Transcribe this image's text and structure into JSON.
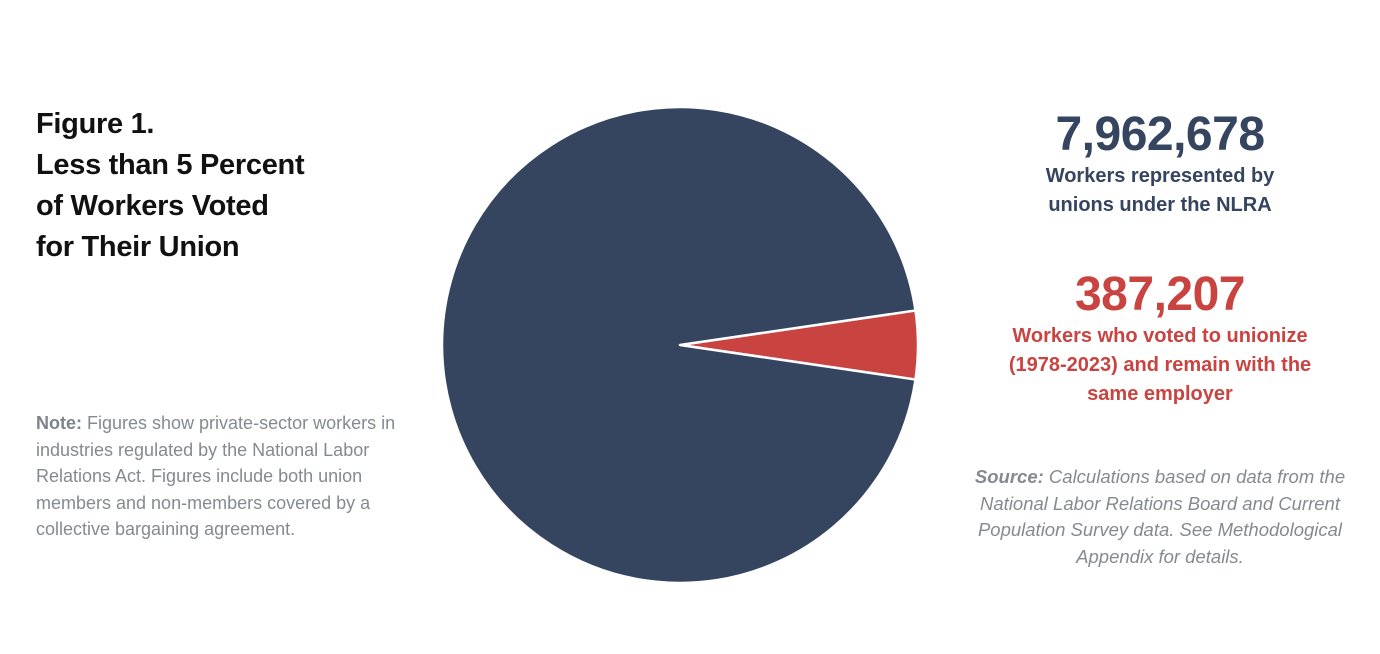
{
  "title_lines": [
    "Figure 1.",
    "Less than 5 Percent",
    "of Workers Voted",
    "for Their Union"
  ],
  "note": {
    "label": "Note:",
    "text": " Figures show private-sector workers in industries regulated by the National Labor Relations Act. Figures include both union members and non-members covered by a collective bargaining agreement."
  },
  "stats": {
    "total": {
      "number": "7,962,678",
      "label_lines": [
        "Workers represented by",
        "unions under the NLRA"
      ]
    },
    "voted": {
      "number": "387,207",
      "label_lines": [
        "Workers who voted to unionize",
        "(1978-2023) and remain with the",
        "same employer"
      ]
    }
  },
  "source": {
    "label": "Source:",
    "text": " Calculations based on data from the National Labor Relations Board and Current Population Survey data. See Methodological Appendix for details."
  },
  "colors": {
    "represented": "#35445f",
    "voted": "#c94441",
    "title": "#111111",
    "muted_text": "#858a90"
  },
  "chart_data": {
    "type": "pie",
    "title": "Less than 5 Percent of Workers Voted for Their Union",
    "slices": [
      {
        "name": "Workers represented by unions under the NLRA",
        "value": 7962678,
        "color": "#35445f"
      },
      {
        "name": "Workers who voted to unionize (1978-2023) and remain with the same employer",
        "value": 387207,
        "color": "#c94441"
      }
    ],
    "legend": "none"
  }
}
